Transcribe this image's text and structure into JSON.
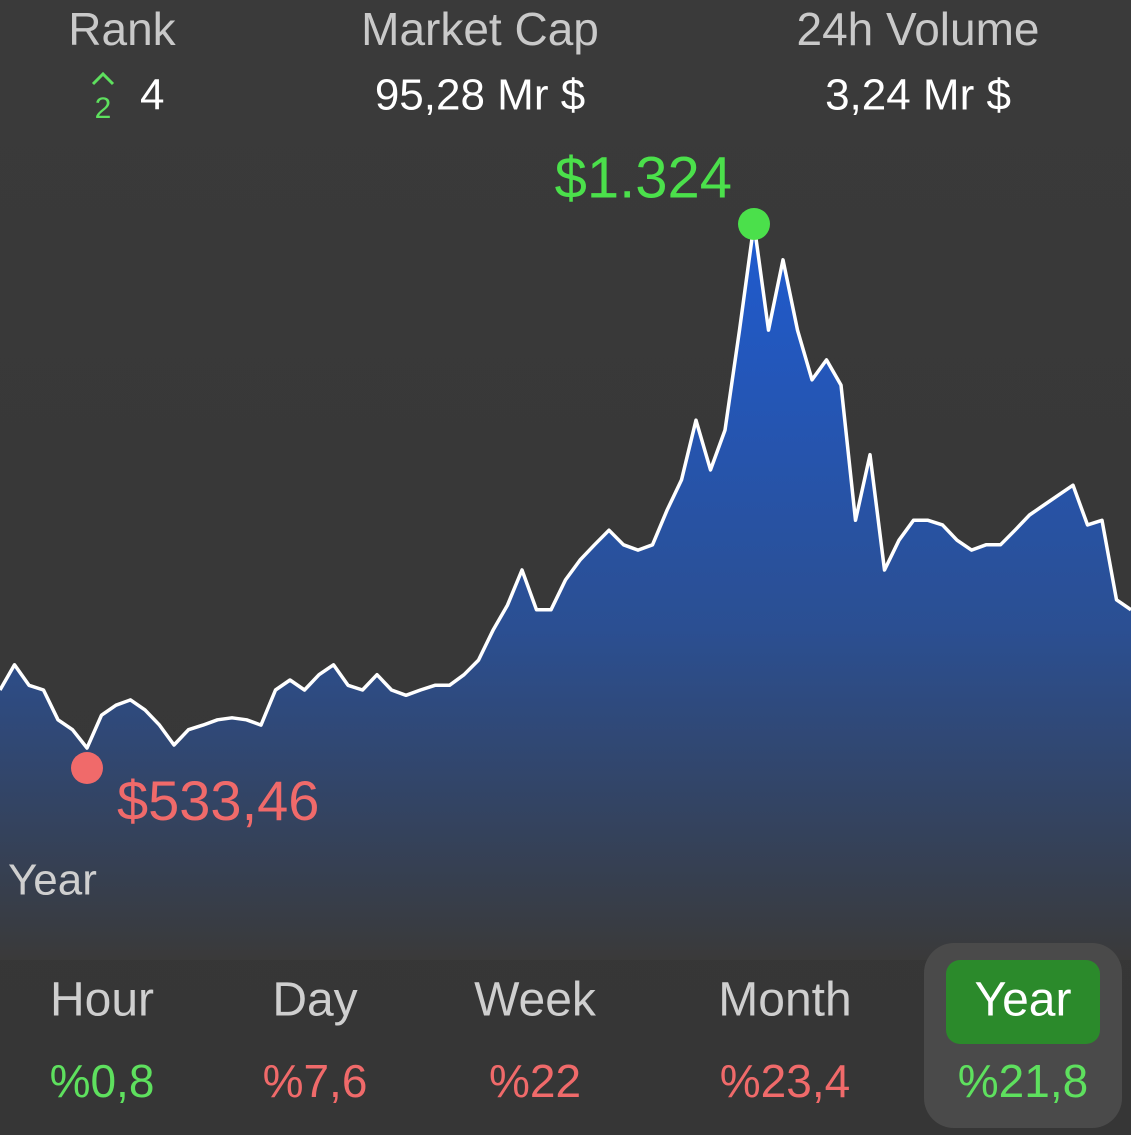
{
  "header": {
    "stats": [
      {
        "label": "Rank",
        "value": "4"
      },
      {
        "label": "Market Cap",
        "value": "95,28 Mr $"
      },
      {
        "label": "24h Volume",
        "value": "3,24 Mr $"
      }
    ],
    "rank_change": "2"
  },
  "chart_data": {
    "type": "area",
    "color": "#2f5fb8",
    "line_color": "#ffffff",
    "values": [
      621,
      659,
      628,
      621,
      576,
      561,
      533.46,
      583,
      598,
      606,
      591,
      568,
      538,
      561,
      568,
      576,
      579,
      576,
      568,
      621,
      636,
      621,
      644,
      659,
      628,
      621,
      644,
      621,
      613,
      621,
      628,
      628,
      644,
      666,
      711,
      749,
      802,
      742,
      742,
      787,
      817,
      840,
      862,
      840,
      832,
      840,
      892,
      938,
      1028,
      953,
      1013,
      1164,
      1324,
      1164,
      1270,
      1164,
      1089,
      1119,
      1081,
      877,
      976,
      802,
      847,
      877,
      877,
      870,
      847,
      832,
      840,
      840,
      862,
      885,
      900,
      915,
      930,
      870,
      877,
      757,
      742
    ],
    "high": {
      "value": 1324,
      "label": "$1.324",
      "color": "#4be04b"
    },
    "low": {
      "value": 533.46,
      "label": "$533,46",
      "color": "#f06a6a"
    },
    "period_label": "Year"
  },
  "periods": {
    "selected": 4,
    "items": [
      {
        "label": "Hour",
        "change": "%0,8",
        "color": "#5ee05e"
      },
      {
        "label": "Day",
        "change": "%7,6",
        "color": "#f06a6a"
      },
      {
        "label": "Week",
        "change": "%22",
        "color": "#f06a6a"
      },
      {
        "label": "Month",
        "change": "%23,4",
        "color": "#f06a6a"
      },
      {
        "label": "Year",
        "change": "%21,8",
        "color": "#5ee05e"
      }
    ]
  }
}
